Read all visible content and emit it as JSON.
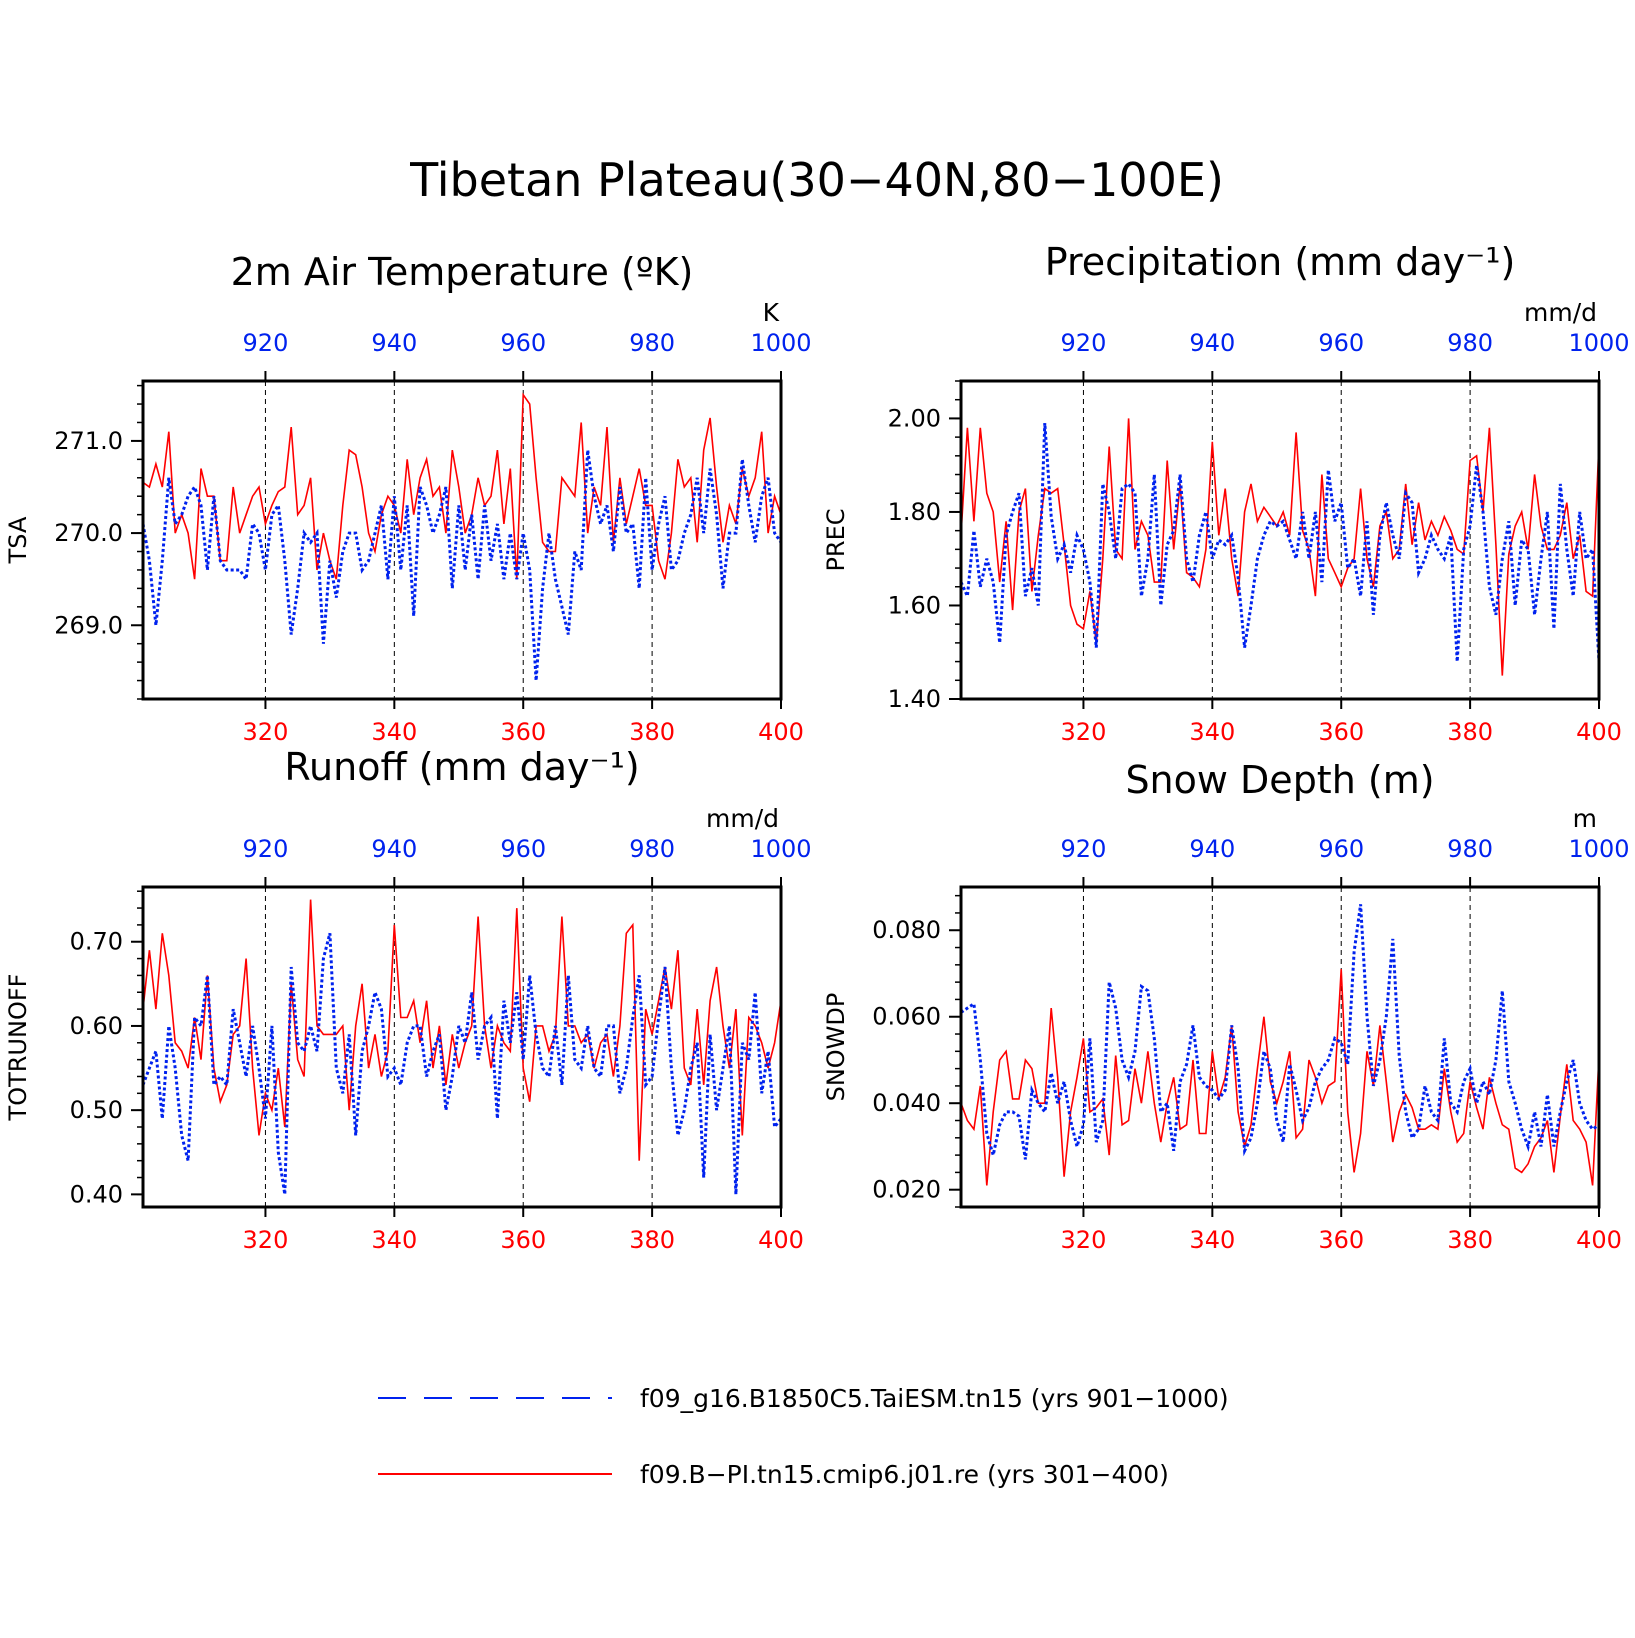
{
  "figure": {
    "title": "Tibetan Plateau(30−40N,80−100E)",
    "colors": {
      "ctrl": "#0022ee",
      "exp": "#ff0000",
      "axis": "#000000"
    }
  },
  "legend": {
    "items": [
      {
        "label": "f09_g16.B1850C5.TaiESM.tn15 (yrs 901−1000)",
        "color": "#0022ee",
        "style": "dashed"
      },
      {
        "label": "f09.B−PI.tn15.cmip6.j01.re (yrs 301−400)",
        "color": "#ff0000",
        "style": "solid"
      }
    ]
  },
  "chart_data": [
    {
      "type": "line",
      "title": "2m Air Temperature (ºK)",
      "ylabel": "TSA",
      "units": "K",
      "xlim_bottom": [
        301,
        400
      ],
      "xlim_top": [
        901,
        1000
      ],
      "ylim": [
        268.2,
        271.65
      ],
      "yticks": [
        269.0,
        270.0,
        271.0
      ],
      "ytick_labels": [
        "269.0",
        "270.0",
        "271.0"
      ],
      "xticks_bottom": [
        "320",
        "340",
        "360",
        "380",
        "400"
      ],
      "xticks_top": [
        "920",
        "940",
        "960",
        "980",
        "1000"
      ],
      "grid_x": [
        320,
        340,
        360,
        380
      ],
      "series": [
        {
          "name": "f09.B−PI.tn15.cmip6.j01.re (yrs 301−400)",
          "color": "#ff0000",
          "style": "solid",
          "values": [
            270.55,
            270.5,
            270.75,
            270.5,
            271.1,
            270.0,
            270.2,
            270.0,
            269.5,
            270.7,
            270.4,
            270.4,
            269.7,
            269.7,
            270.5,
            270.0,
            270.2,
            270.4,
            270.5,
            270.1,
            270.3,
            270.45,
            270.5,
            271.15,
            270.2,
            270.3,
            270.6,
            269.6,
            270.0,
            269.7,
            269.5,
            270.3,
            270.9,
            270.85,
            270.5,
            270.0,
            269.8,
            270.2,
            270.4,
            270.3,
            270.0,
            270.8,
            270.2,
            270.6,
            270.8,
            270.4,
            270.5,
            270.0,
            270.9,
            270.5,
            270.0,
            270.2,
            270.6,
            270.3,
            270.4,
            270.9,
            270.1,
            270.7,
            269.5,
            271.5,
            271.4,
            270.6,
            269.9,
            269.8,
            269.8,
            270.6,
            270.5,
            270.4,
            271.2,
            270.0,
            270.5,
            270.3,
            271.15,
            269.9,
            270.6,
            270.1,
            270.4,
            270.7,
            270.3,
            270.3,
            269.7,
            269.5,
            270.0,
            270.8,
            270.5,
            270.6,
            269.9,
            270.9,
            271.25,
            270.5,
            269.9,
            270.3,
            270.1,
            270.7,
            270.4,
            270.6,
            271.1,
            270.0,
            270.4,
            270.2
          ]
        },
        {
          "name": "f09_g16.B1850C5.TaiESM.tn15 (yrs 901−1000)",
          "color": "#0022ee",
          "style": "dashed",
          "values": [
            270.1,
            269.7,
            269.0,
            269.7,
            270.6,
            270.1,
            270.2,
            270.4,
            270.5,
            270.3,
            269.6,
            270.4,
            269.7,
            269.6,
            269.6,
            269.6,
            269.5,
            270.1,
            270.0,
            269.6,
            270.2,
            270.3,
            269.7,
            268.9,
            269.4,
            270.0,
            269.9,
            270.0,
            268.8,
            269.7,
            269.3,
            269.8,
            270.0,
            270.0,
            269.6,
            269.7,
            270.0,
            270.3,
            269.5,
            270.4,
            269.6,
            270.3,
            269.1,
            270.5,
            270.3,
            270.0,
            270.2,
            270.5,
            269.4,
            270.3,
            269.6,
            270.2,
            269.5,
            270.3,
            269.7,
            270.1,
            269.5,
            270.0,
            269.5,
            270.0,
            269.6,
            268.4,
            269.4,
            270.0,
            269.5,
            269.2,
            268.9,
            269.8,
            269.6,
            270.9,
            270.4,
            270.1,
            270.3,
            269.8,
            270.5,
            270.0,
            270.1,
            269.4,
            270.6,
            269.6,
            270.1,
            270.4,
            269.6,
            269.7,
            270.0,
            270.2,
            270.6,
            270.0,
            270.7,
            270.2,
            269.4,
            270.0,
            270.0,
            270.8,
            270.3,
            269.9,
            270.4,
            270.6,
            270.0,
            269.9
          ]
        }
      ]
    },
    {
      "type": "line",
      "title": "Precipitation (mm day⁻¹)",
      "ylabel": "PREC",
      "units": "mm/d",
      "xlim_bottom": [
        301,
        400
      ],
      "xlim_top": [
        901,
        1000
      ],
      "ylim": [
        1.4,
        2.08
      ],
      "yticks": [
        1.4,
        1.6,
        1.8,
        2.0
      ],
      "ytick_labels": [
        "1.40",
        "1.60",
        "1.80",
        "2.00"
      ],
      "xticks_bottom": [
        "320",
        "340",
        "360",
        "380",
        "400"
      ],
      "xticks_top": [
        "920",
        "940",
        "960",
        "980",
        "1000"
      ],
      "grid_x": [
        320,
        340,
        360,
        380
      ],
      "series": [
        {
          "name": "f09.B−PI.tn15.cmip6.j01.re (yrs 301−400)",
          "color": "#ff0000",
          "style": "solid",
          "values": [
            1.75,
            1.98,
            1.78,
            1.98,
            1.84,
            1.8,
            1.65,
            1.78,
            1.59,
            1.8,
            1.85,
            1.63,
            1.75,
            1.85,
            1.84,
            1.85,
            1.73,
            1.6,
            1.56,
            1.55,
            1.63,
            1.52,
            1.7,
            1.94,
            1.72,
            1.7,
            2.0,
            1.72,
            1.78,
            1.75,
            1.65,
            1.65,
            1.91,
            1.72,
            1.86,
            1.67,
            1.66,
            1.64,
            1.72,
            1.95,
            1.75,
            1.85,
            1.7,
            1.62,
            1.8,
            1.86,
            1.78,
            1.81,
            1.79,
            1.77,
            1.8,
            1.75,
            1.97,
            1.76,
            1.72,
            1.62,
            1.88,
            1.7,
            1.67,
            1.64,
            1.68,
            1.7,
            1.85,
            1.7,
            1.64,
            1.77,
            1.8,
            1.7,
            1.72,
            1.86,
            1.73,
            1.82,
            1.74,
            1.78,
            1.75,
            1.79,
            1.76,
            1.72,
            1.71,
            1.91,
            1.92,
            1.8,
            1.98,
            1.73,
            1.45,
            1.71,
            1.77,
            1.8,
            1.72,
            1.88,
            1.77,
            1.72,
            1.72,
            1.75,
            1.82,
            1.7,
            1.75,
            1.63,
            1.62,
            1.95
          ]
        },
        {
          "name": "f09_g16.B1850C5.TaiESM.tn15 (yrs 901−1000)",
          "color": "#0022ee",
          "style": "dashed",
          "values": [
            1.65,
            1.62,
            1.76,
            1.64,
            1.7,
            1.65,
            1.52,
            1.75,
            1.8,
            1.84,
            1.62,
            1.68,
            1.6,
            1.99,
            1.79,
            1.7,
            1.73,
            1.67,
            1.75,
            1.72,
            1.65,
            1.51,
            1.86,
            1.8,
            1.7,
            1.85,
            1.86,
            1.84,
            1.62,
            1.7,
            1.88,
            1.6,
            1.73,
            1.76,
            1.88,
            1.7,
            1.65,
            1.75,
            1.8,
            1.7,
            1.74,
            1.73,
            1.75,
            1.66,
            1.51,
            1.6,
            1.7,
            1.75,
            1.78,
            1.77,
            1.78,
            1.74,
            1.7,
            1.8,
            1.7,
            1.8,
            1.65,
            1.89,
            1.78,
            1.82,
            1.68,
            1.7,
            1.62,
            1.78,
            1.58,
            1.75,
            1.82,
            1.75,
            1.7,
            1.84,
            1.82,
            1.67,
            1.7,
            1.75,
            1.72,
            1.7,
            1.75,
            1.48,
            1.72,
            1.77,
            1.9,
            1.8,
            1.64,
            1.58,
            1.7,
            1.78,
            1.6,
            1.74,
            1.72,
            1.58,
            1.7,
            1.8,
            1.55,
            1.86,
            1.72,
            1.62,
            1.8,
            1.7,
            1.72,
            1.48
          ]
        }
      ]
    },
    {
      "type": "line",
      "title": "Runoff (mm day⁻¹)",
      "ylabel": "TOTRUNOFF",
      "units": "mm/d",
      "xlim_bottom": [
        301,
        400
      ],
      "xlim_top": [
        901,
        1000
      ],
      "ylim": [
        0.385,
        0.765
      ],
      "yticks": [
        0.4,
        0.5,
        0.6,
        0.7
      ],
      "ytick_labels": [
        "0.40",
        "0.50",
        "0.60",
        "0.70"
      ],
      "xticks_bottom": [
        "320",
        "340",
        "360",
        "380",
        "400"
      ],
      "xticks_top": [
        "920",
        "940",
        "960",
        "980",
        "1000"
      ],
      "grid_x": [
        320,
        340,
        360,
        380
      ],
      "series": [
        {
          "name": "f09.B−PI.tn15.cmip6.j01.re (yrs 301−400)",
          "color": "#ff0000",
          "style": "solid",
          "values": [
            0.62,
            0.69,
            0.62,
            0.71,
            0.66,
            0.58,
            0.57,
            0.55,
            0.61,
            0.56,
            0.66,
            0.55,
            0.51,
            0.53,
            0.59,
            0.6,
            0.68,
            0.55,
            0.47,
            0.52,
            0.5,
            0.55,
            0.48,
            0.65,
            0.56,
            0.54,
            0.75,
            0.6,
            0.59,
            0.59,
            0.59,
            0.6,
            0.5,
            0.6,
            0.65,
            0.55,
            0.59,
            0.54,
            0.57,
            0.72,
            0.61,
            0.61,
            0.63,
            0.58,
            0.63,
            0.55,
            0.6,
            0.53,
            0.59,
            0.55,
            0.58,
            0.6,
            0.73,
            0.6,
            0.55,
            0.6,
            0.58,
            0.57,
            0.74,
            0.55,
            0.51,
            0.6,
            0.6,
            0.57,
            0.59,
            0.73,
            0.6,
            0.6,
            0.58,
            0.59,
            0.55,
            0.58,
            0.59,
            0.54,
            0.6,
            0.71,
            0.72,
            0.44,
            0.62,
            0.59,
            0.63,
            0.67,
            0.62,
            0.69,
            0.55,
            0.53,
            0.62,
            0.53,
            0.63,
            0.67,
            0.6,
            0.55,
            0.62,
            0.47,
            0.61,
            0.6,
            0.58,
            0.55,
            0.58,
            0.63
          ]
        },
        {
          "name": "f09_g16.B1850C5.TaiESM.tn15 (yrs 901−1000)",
          "color": "#0022ee",
          "style": "dashed",
          "values": [
            0.53,
            0.55,
            0.57,
            0.49,
            0.6,
            0.55,
            0.47,
            0.44,
            0.61,
            0.6,
            0.66,
            0.53,
            0.54,
            0.53,
            0.62,
            0.58,
            0.54,
            0.6,
            0.55,
            0.49,
            0.6,
            0.45,
            0.4,
            0.67,
            0.58,
            0.57,
            0.6,
            0.57,
            0.68,
            0.71,
            0.55,
            0.52,
            0.59,
            0.47,
            0.57,
            0.6,
            0.64,
            0.62,
            0.54,
            0.55,
            0.53,
            0.58,
            0.6,
            0.6,
            0.54,
            0.57,
            0.59,
            0.5,
            0.54,
            0.6,
            0.58,
            0.64,
            0.56,
            0.6,
            0.61,
            0.49,
            0.63,
            0.58,
            0.64,
            0.56,
            0.66,
            0.59,
            0.55,
            0.54,
            0.6,
            0.53,
            0.66,
            0.56,
            0.55,
            0.6,
            0.55,
            0.54,
            0.6,
            0.6,
            0.52,
            0.55,
            0.61,
            0.66,
            0.53,
            0.54,
            0.61,
            0.67,
            0.55,
            0.47,
            0.5,
            0.55,
            0.58,
            0.42,
            0.59,
            0.5,
            0.55,
            0.6,
            0.4,
            0.58,
            0.56,
            0.64,
            0.52,
            0.57,
            0.48,
            0.49
          ]
        }
      ]
    },
    {
      "type": "line",
      "title": "Snow Depth (m)",
      "ylabel": "SNOWDP",
      "units": "m",
      "xlim_bottom": [
        301,
        400
      ],
      "xlim_top": [
        901,
        1000
      ],
      "ylim": [
        0.016,
        0.09
      ],
      "yticks": [
        0.02,
        0.04,
        0.06,
        0.08
      ],
      "ytick_labels": [
        "0.020",
        "0.040",
        "0.060",
        "0.080"
      ],
      "xticks_bottom": [
        "320",
        "340",
        "360",
        "380",
        "400"
      ],
      "xticks_top": [
        "920",
        "940",
        "960",
        "980",
        "1000"
      ],
      "grid_x": [
        320,
        340,
        360,
        380
      ],
      "series": [
        {
          "name": "f09.B−PI.tn15.cmip6.j01.re (yrs 301−400)",
          "color": "#ff0000",
          "style": "solid",
          "values": [
            0.04,
            0.036,
            0.034,
            0.044,
            0.021,
            0.038,
            0.05,
            0.052,
            0.041,
            0.041,
            0.05,
            0.048,
            0.04,
            0.04,
            0.062,
            0.046,
            0.023,
            0.038,
            0.046,
            0.055,
            0.038,
            0.039,
            0.041,
            0.028,
            0.051,
            0.035,
            0.036,
            0.048,
            0.04,
            0.052,
            0.04,
            0.031,
            0.04,
            0.046,
            0.034,
            0.035,
            0.05,
            0.033,
            0.033,
            0.052,
            0.041,
            0.046,
            0.058,
            0.038,
            0.03,
            0.035,
            0.048,
            0.06,
            0.045,
            0.04,
            0.045,
            0.052,
            0.032,
            0.034,
            0.05,
            0.046,
            0.04,
            0.044,
            0.045,
            0.071,
            0.038,
            0.024,
            0.033,
            0.052,
            0.044,
            0.058,
            0.045,
            0.031,
            0.038,
            0.042,
            0.039,
            0.034,
            0.034,
            0.035,
            0.034,
            0.048,
            0.038,
            0.031,
            0.033,
            0.045,
            0.039,
            0.034,
            0.046,
            0.04,
            0.035,
            0.034,
            0.025,
            0.024,
            0.026,
            0.03,
            0.032,
            0.036,
            0.024,
            0.037,
            0.049,
            0.036,
            0.034,
            0.031,
            0.021,
            0.051
          ]
        },
        {
          "name": "f09_g16.B1850C5.TaiESM.tn15 (yrs 901−1000)",
          "color": "#0022ee",
          "style": "dashed",
          "values": [
            0.061,
            0.062,
            0.063,
            0.05,
            0.033,
            0.028,
            0.035,
            0.038,
            0.038,
            0.037,
            0.027,
            0.043,
            0.04,
            0.038,
            0.047,
            0.04,
            0.045,
            0.036,
            0.03,
            0.035,
            0.055,
            0.031,
            0.036,
            0.068,
            0.062,
            0.05,
            0.046,
            0.052,
            0.067,
            0.066,
            0.055,
            0.038,
            0.04,
            0.029,
            0.045,
            0.049,
            0.058,
            0.046,
            0.044,
            0.043,
            0.041,
            0.043,
            0.058,
            0.048,
            0.029,
            0.032,
            0.04,
            0.052,
            0.048,
            0.036,
            0.031,
            0.049,
            0.043,
            0.036,
            0.039,
            0.045,
            0.048,
            0.05,
            0.055,
            0.054,
            0.049,
            0.075,
            0.086,
            0.06,
            0.044,
            0.05,
            0.06,
            0.078,
            0.051,
            0.038,
            0.032,
            0.034,
            0.044,
            0.038,
            0.036,
            0.055,
            0.04,
            0.038,
            0.045,
            0.048,
            0.04,
            0.045,
            0.042,
            0.05,
            0.066,
            0.045,
            0.04,
            0.034,
            0.03,
            0.038,
            0.03,
            0.042,
            0.03,
            0.038,
            0.045,
            0.05,
            0.04,
            0.036,
            0.034,
            0.035
          ]
        }
      ]
    }
  ]
}
